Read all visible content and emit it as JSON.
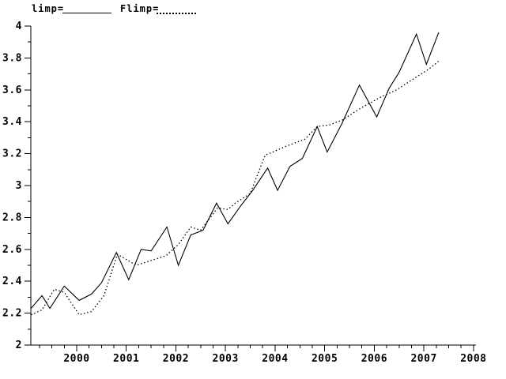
{
  "page": {
    "background_color": "#ffffff",
    "foreground_color": "#000000"
  },
  "legend": {
    "items": [
      {
        "label": "limp=",
        "style": "solid"
      },
      {
        "label": "Flimp=",
        "style": "dotted"
      }
    ],
    "position": "top-left"
  },
  "chart_data": {
    "type": "line",
    "title": "",
    "xlabel": "",
    "ylabel": "",
    "xlim": [
      1999.076,
      2008.05
    ],
    "ylim": [
      2,
      4
    ],
    "grid": false,
    "legend_position": "top-left",
    "x_major_ticks": [
      {
        "v": 2000,
        "label": "2000"
      },
      {
        "v": 2001,
        "label": "2001"
      },
      {
        "v": 2002,
        "label": "2002"
      },
      {
        "v": 2003,
        "label": "2003"
      },
      {
        "v": 2004,
        "label": "2004"
      },
      {
        "v": 2005,
        "label": "2005"
      },
      {
        "v": 2006,
        "label": "2006"
      },
      {
        "v": 2007,
        "label": "2007"
      },
      {
        "v": 2008,
        "label": "2008"
      }
    ],
    "x_minor_step": 0.25,
    "y_major_ticks": [
      {
        "v": 2.0,
        "label": "2"
      },
      {
        "v": 2.2,
        "label": "2.2"
      },
      {
        "v": 2.4,
        "label": "2.4"
      },
      {
        "v": 2.6,
        "label": "2.6"
      },
      {
        "v": 2.8,
        "label": "2.8"
      },
      {
        "v": 3.0,
        "label": "3"
      },
      {
        "v": 3.2,
        "label": "3.2"
      },
      {
        "v": 3.4,
        "label": "3.4"
      },
      {
        "v": 3.6,
        "label": "3.6"
      },
      {
        "v": 3.8,
        "label": "3.8"
      },
      {
        "v": 4.0,
        "label": "4"
      }
    ],
    "y_minor_step": 0.1,
    "series": [
      {
        "name": "limp",
        "style": "solid",
        "color": "#000000",
        "points": [
          [
            1999.08,
            2.23
          ],
          [
            1999.3,
            2.31
          ],
          [
            1999.46,
            2.23
          ],
          [
            1999.75,
            2.37
          ],
          [
            2000.05,
            2.28
          ],
          [
            2000.3,
            2.32
          ],
          [
            2000.5,
            2.39
          ],
          [
            2000.8,
            2.58
          ],
          [
            2001.05,
            2.41
          ],
          [
            2001.3,
            2.6
          ],
          [
            2001.5,
            2.59
          ],
          [
            2001.82,
            2.74
          ],
          [
            2002.05,
            2.5
          ],
          [
            2002.3,
            2.69
          ],
          [
            2002.55,
            2.72
          ],
          [
            2002.82,
            2.89
          ],
          [
            2003.05,
            2.76
          ],
          [
            2003.3,
            2.87
          ],
          [
            2003.55,
            2.97
          ],
          [
            2003.85,
            3.11
          ],
          [
            2004.05,
            2.97
          ],
          [
            2004.3,
            3.12
          ],
          [
            2004.55,
            3.17
          ],
          [
            2004.85,
            3.37
          ],
          [
            2005.05,
            3.21
          ],
          [
            2005.35,
            3.39
          ],
          [
            2005.7,
            3.63
          ],
          [
            2006.05,
            3.43
          ],
          [
            2006.3,
            3.61
          ],
          [
            2006.5,
            3.71
          ],
          [
            2006.85,
            3.95
          ],
          [
            2007.05,
            3.76
          ],
          [
            2007.3,
            3.96
          ]
        ]
      },
      {
        "name": "Flimp",
        "style": "dotted",
        "color": "#000000",
        "points": [
          [
            1999.08,
            2.19
          ],
          [
            1999.3,
            2.22
          ],
          [
            1999.55,
            2.35
          ],
          [
            1999.75,
            2.33
          ],
          [
            2000.05,
            2.19
          ],
          [
            2000.3,
            2.21
          ],
          [
            2000.55,
            2.31
          ],
          [
            2000.82,
            2.57
          ],
          [
            2001.2,
            2.5
          ],
          [
            2001.5,
            2.53
          ],
          [
            2001.8,
            2.56
          ],
          [
            2002.05,
            2.63
          ],
          [
            2002.3,
            2.74
          ],
          [
            2002.5,
            2.72
          ],
          [
            2002.84,
            2.86
          ],
          [
            2003.05,
            2.85
          ],
          [
            2003.2,
            2.89
          ],
          [
            2003.5,
            2.95
          ],
          [
            2003.8,
            3.19
          ],
          [
            2003.95,
            3.21
          ],
          [
            2004.25,
            3.25
          ],
          [
            2004.6,
            3.29
          ],
          [
            2004.85,
            3.37
          ],
          [
            2005.1,
            3.38
          ],
          [
            2005.35,
            3.41
          ],
          [
            2005.7,
            3.48
          ],
          [
            2006.1,
            3.55
          ],
          [
            2006.45,
            3.6
          ],
          [
            2006.85,
            3.68
          ],
          [
            2007.1,
            3.73
          ],
          [
            2007.3,
            3.78
          ]
        ]
      }
    ]
  }
}
